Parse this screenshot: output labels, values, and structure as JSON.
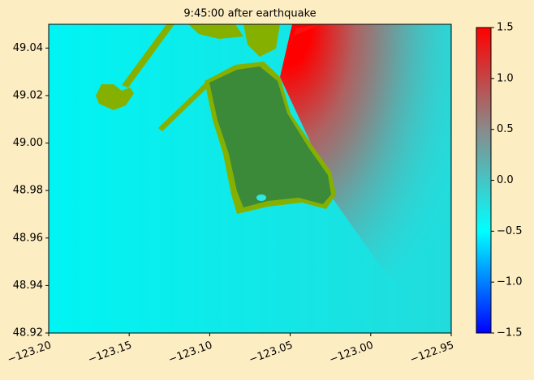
{
  "chart_data": {
    "type": "heatmap",
    "title": "9:45:00 after earthquake",
    "xlim": [
      -123.2,
      -122.95
    ],
    "xticks": [
      {
        "value": -123.2,
        "label": "−123.20"
      },
      {
        "value": -123.15,
        "label": "−123.15"
      },
      {
        "value": -123.1,
        "label": "−123.10"
      },
      {
        "value": -123.05,
        "label": "−123.05"
      },
      {
        "value": -123.0,
        "label": "−123.00"
      },
      {
        "value": -122.95,
        "label": "−122.95"
      }
    ],
    "ylim": [
      48.92,
      49.05
    ],
    "yticks": [
      48.92,
      48.94,
      48.96,
      48.98,
      {
        "value": 49.0,
        "label": "49.00"
      },
      49.02,
      49.04
    ],
    "clim": [
      -1.5,
      1.5
    ],
    "cticks": [
      {
        "value": -1.5,
        "label": "−1.5"
      },
      {
        "value": -1.0,
        "label": "−1.0"
      },
      {
        "value": -0.5,
        "label": "−0.5"
      },
      {
        "value": 0.0,
        "label": "0.0"
      },
      0.5,
      {
        "value": 1.0,
        "label": "1.0"
      },
      1.5
    ],
    "colormap": [
      "#0000ff",
      "#00ffff",
      "#8a8a8a",
      "#ff0000"
    ]
  }
}
